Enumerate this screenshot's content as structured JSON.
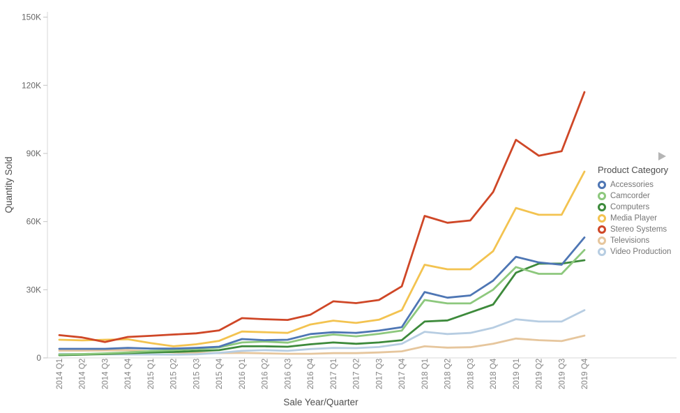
{
  "chart_data": {
    "type": "line",
    "title": "",
    "xlabel": "Sale Year/Quarter",
    "ylabel": "Quantity Sold",
    "ylim": [
      0,
      150000
    ],
    "grid": false,
    "legend_position": "right",
    "y_ticks": [
      {
        "value": 0,
        "label": "0"
      },
      {
        "value": 30000,
        "label": "30K"
      },
      {
        "value": 60000,
        "label": "60K"
      },
      {
        "value": 90000,
        "label": "90K"
      },
      {
        "value": 120000,
        "label": "120K"
      },
      {
        "value": 150000,
        "label": "150K"
      }
    ],
    "categories": [
      "2014 Q1",
      "2014 Q2",
      "2014 Q3",
      "2014 Q4",
      "2015 Q1",
      "2015 Q2",
      "2015 Q3",
      "2015 Q4",
      "2016 Q1",
      "2016 Q2",
      "2016 Q3",
      "2016 Q4",
      "2017 Q1",
      "2017 Q2",
      "2017 Q3",
      "2017 Q4",
      "2018 Q1",
      "2018 Q2",
      "2018 Q3",
      "2018 Q4",
      "2019 Q1",
      "2019 Q2",
      "2019 Q3",
      "2019 Q4"
    ],
    "series": [
      {
        "name": "Accessories",
        "color": "#4e76b4",
        "values": [
          4000,
          4000,
          4000,
          4400,
          4100,
          4100,
          4400,
          4900,
          8300,
          7800,
          8000,
          10500,
          11300,
          11000,
          12000,
          13500,
          29000,
          26500,
          27500,
          34000,
          44500,
          42000,
          41000,
          53000
        ]
      },
      {
        "name": "Camcorder",
        "color": "#8dc87d",
        "values": [
          1500,
          1700,
          2000,
          2400,
          3000,
          3400,
          3900,
          4600,
          6800,
          7200,
          6700,
          9000,
          10300,
          9500,
          10600,
          12000,
          25500,
          24000,
          24000,
          30000,
          40000,
          37000,
          37000,
          47500
        ]
      },
      {
        "name": "Computers",
        "color": "#3d8a3b",
        "values": [
          1200,
          1400,
          1700,
          2100,
          2400,
          2600,
          3000,
          3400,
          5100,
          5100,
          4900,
          6000,
          6800,
          6200,
          6800,
          7800,
          16000,
          16500,
          20000,
          23500,
          37500,
          41500,
          41500,
          43000
        ]
      },
      {
        "name": "Media Player",
        "color": "#f3c350",
        "values": [
          8000,
          7700,
          8000,
          8200,
          6500,
          5100,
          6000,
          7500,
          11600,
          11300,
          11000,
          14700,
          16400,
          15400,
          16800,
          21000,
          41000,
          39000,
          39000,
          47000,
          66000,
          63000,
          63000,
          82000
        ]
      },
      {
        "name": "Stereo Systems",
        "color": "#cf4727",
        "values": [
          10000,
          9000,
          7000,
          9200,
          9700,
          10300,
          10800,
          12100,
          17500,
          17000,
          16700,
          19000,
          24900,
          24100,
          25500,
          31500,
          62500,
          59500,
          60500,
          73000,
          96000,
          89000,
          91000,
          117000
        ]
      },
      {
        "name": "Televisions",
        "color": "#e6c69d",
        "values": [
          3200,
          3200,
          3300,
          3400,
          2900,
          2400,
          2200,
          2100,
          2200,
          2000,
          1800,
          1800,
          2100,
          2100,
          2400,
          2900,
          5100,
          4500,
          4700,
          6200,
          8500,
          7800,
          7400,
          9800
        ]
      },
      {
        "name": "Video Production",
        "color": "#b7cde2",
        "values": [
          1800,
          1700,
          1600,
          1500,
          1500,
          1400,
          1600,
          2200,
          3100,
          3400,
          3100,
          3900,
          4400,
          4300,
          4800,
          6200,
          11500,
          10500,
          11000,
          13300,
          17000,
          16000,
          16000,
          21000
        ]
      }
    ],
    "draw_order": [
      "Televisions",
      "Video Production",
      "Computers",
      "Camcorder",
      "Accessories",
      "Media Player",
      "Stereo Systems"
    ]
  },
  "legend": {
    "title": "Product Category",
    "scroll_right_icon": "right-triangle"
  }
}
